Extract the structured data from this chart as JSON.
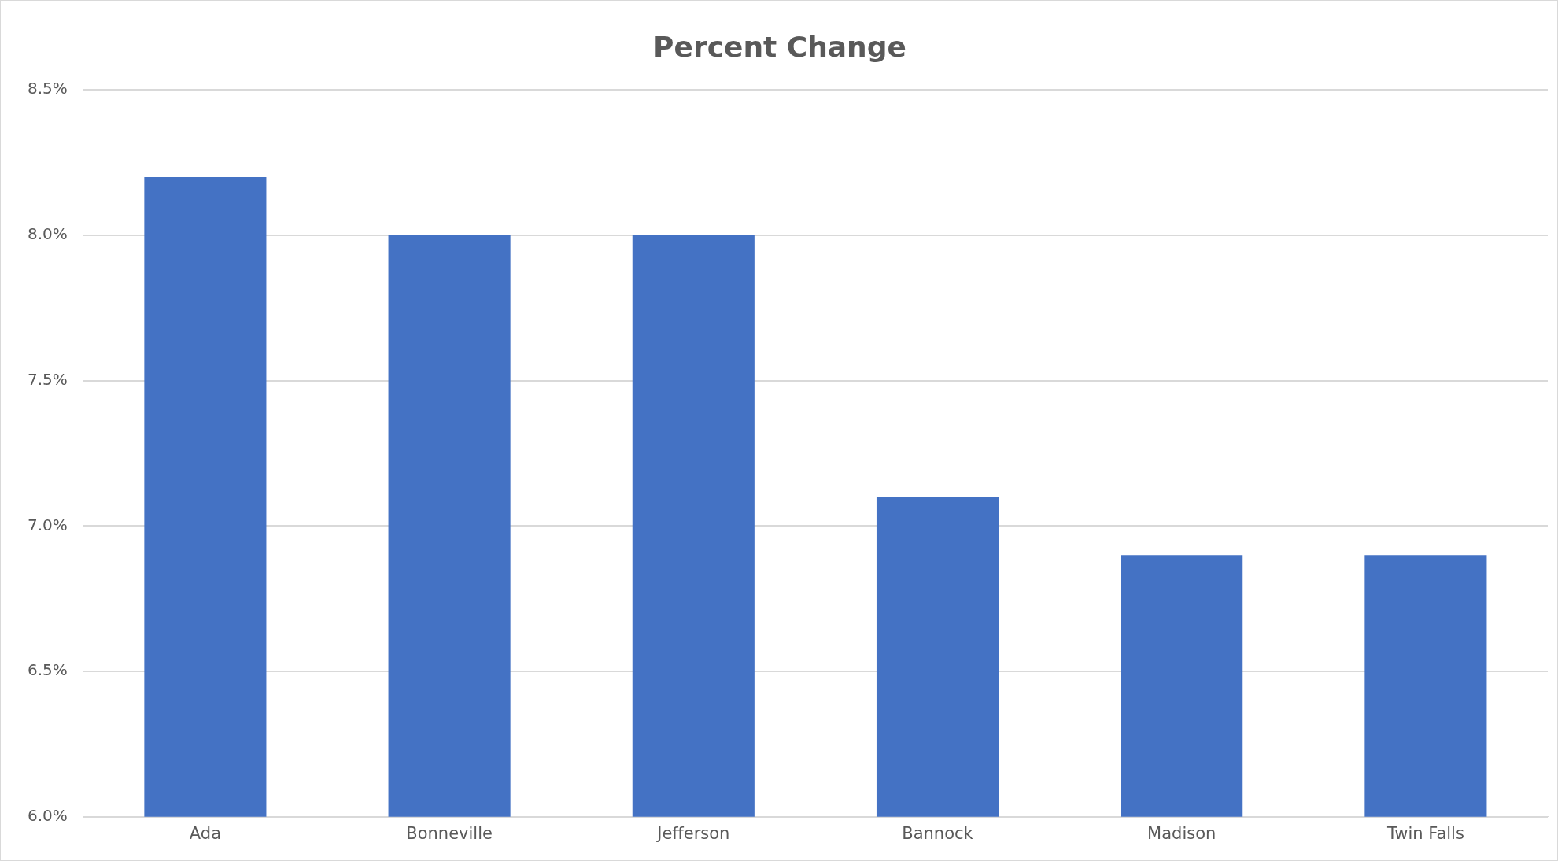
{
  "chart_data": {
    "type": "bar",
    "title": "Percent Change",
    "categories": [
      "Ada",
      "Bonneville",
      "Jefferson",
      "Bannock",
      "Madison",
      "Twin Falls"
    ],
    "values": [
      8.2,
      8.0,
      8.0,
      7.1,
      6.9,
      6.9
    ],
    "color": "#4472c4",
    "ylim": [
      6.0,
      8.5
    ],
    "yticks": [
      {
        "value": 6.0,
        "label": "6.0%"
      },
      {
        "value": 6.5,
        "label": "6.5%"
      },
      {
        "value": 7.0,
        "label": "7.0%"
      },
      {
        "value": 7.5,
        "label": "7.5%"
      },
      {
        "value": 8.0,
        "label": "8.0%"
      },
      {
        "value": 8.5,
        "label": "8.5%"
      }
    ],
    "grid": "y",
    "legend": false
  }
}
